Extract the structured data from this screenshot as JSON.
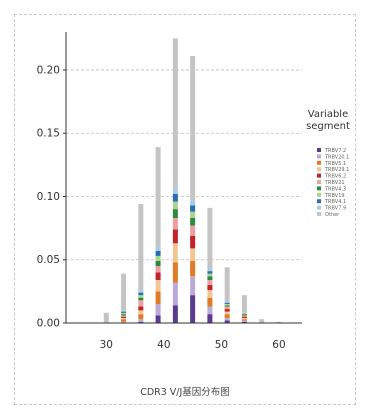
{
  "chart_data": {
    "type": "bar",
    "stacked": true,
    "xlabel": "CDR3 V/J基因分布图",
    "ylabel": "",
    "xlim": [
      23,
      64
    ],
    "ylim": [
      0,
      0.23
    ],
    "x_ticks": [
      30,
      40,
      50,
      60
    ],
    "y_ticks": [
      0.0,
      0.05,
      0.1,
      0.15,
      0.2
    ],
    "y_tick_labels": [
      "0.00",
      "0.05",
      "0.10",
      "0.15",
      "0.20"
    ],
    "grid": "horizontal dashed",
    "legend_title": "Variable segment",
    "legend_position": "right",
    "categories": [
      30,
      33,
      36,
      39,
      42,
      45,
      48,
      51,
      54,
      57,
      60
    ],
    "series": [
      {
        "name": "TRBV7.2",
        "color": "#5b3a8f",
        "values": [
          0.0,
          0.0,
          0.001,
          0.006,
          0.014,
          0.022,
          0.007,
          0.002,
          0.001,
          0.0,
          0.0
        ]
      },
      {
        "name": "TRBV20.1",
        "color": "#bcaad6",
        "values": [
          0.0,
          0.001,
          0.002,
          0.009,
          0.018,
          0.015,
          0.006,
          0.002,
          0.001,
          0.0,
          0.0
        ]
      },
      {
        "name": "TRBV5.1",
        "color": "#e07b27",
        "values": [
          0.0,
          0.002,
          0.004,
          0.01,
          0.016,
          0.012,
          0.007,
          0.003,
          0.001,
          0.0,
          0.0
        ]
      },
      {
        "name": "TRBV29.1",
        "color": "#f2c694",
        "values": [
          0.0,
          0.001,
          0.003,
          0.009,
          0.015,
          0.01,
          0.006,
          0.002,
          0.001,
          0.0,
          0.0
        ]
      },
      {
        "name": "TRBV6.2",
        "color": "#c0232a",
        "values": [
          0.0,
          0.001,
          0.003,
          0.006,
          0.011,
          0.01,
          0.004,
          0.002,
          0.001,
          0.0,
          0.0
        ]
      },
      {
        "name": "TRBV21",
        "color": "#ee9ca6",
        "values": [
          0.0,
          0.001,
          0.005,
          0.005,
          0.009,
          0.008,
          0.004,
          0.002,
          0.001,
          0.0,
          0.0
        ]
      },
      {
        "name": "TRBV4.3",
        "color": "#2e8b3d",
        "values": [
          0.0,
          0.001,
          0.002,
          0.004,
          0.007,
          0.006,
          0.003,
          0.001,
          0.001,
          0.0,
          0.0
        ]
      },
      {
        "name": "TRBV19",
        "color": "#a9d58f",
        "values": [
          0.0,
          0.001,
          0.002,
          0.004,
          0.006,
          0.005,
          0.002,
          0.001,
          0.001,
          0.0,
          0.0
        ]
      },
      {
        "name": "TRBV4.1",
        "color": "#2a6db0",
        "values": [
          0.0,
          0.001,
          0.002,
          0.004,
          0.006,
          0.005,
          0.002,
          0.001,
          0.0,
          0.0,
          0.0
        ]
      },
      {
        "name": "TRBV7.9",
        "color": "#a7cbe6",
        "values": [
          0.0,
          0.001,
          0.002,
          0.003,
          0.005,
          0.004,
          0.002,
          0.001,
          0.0,
          0.0,
          0.0
        ]
      },
      {
        "name": "Other",
        "color": "#c4c4c4",
        "values": [
          0.008,
          0.029,
          0.068,
          0.079,
          0.118,
          0.114,
          0.048,
          0.027,
          0.014,
          0.003,
          0.001
        ]
      }
    ]
  }
}
